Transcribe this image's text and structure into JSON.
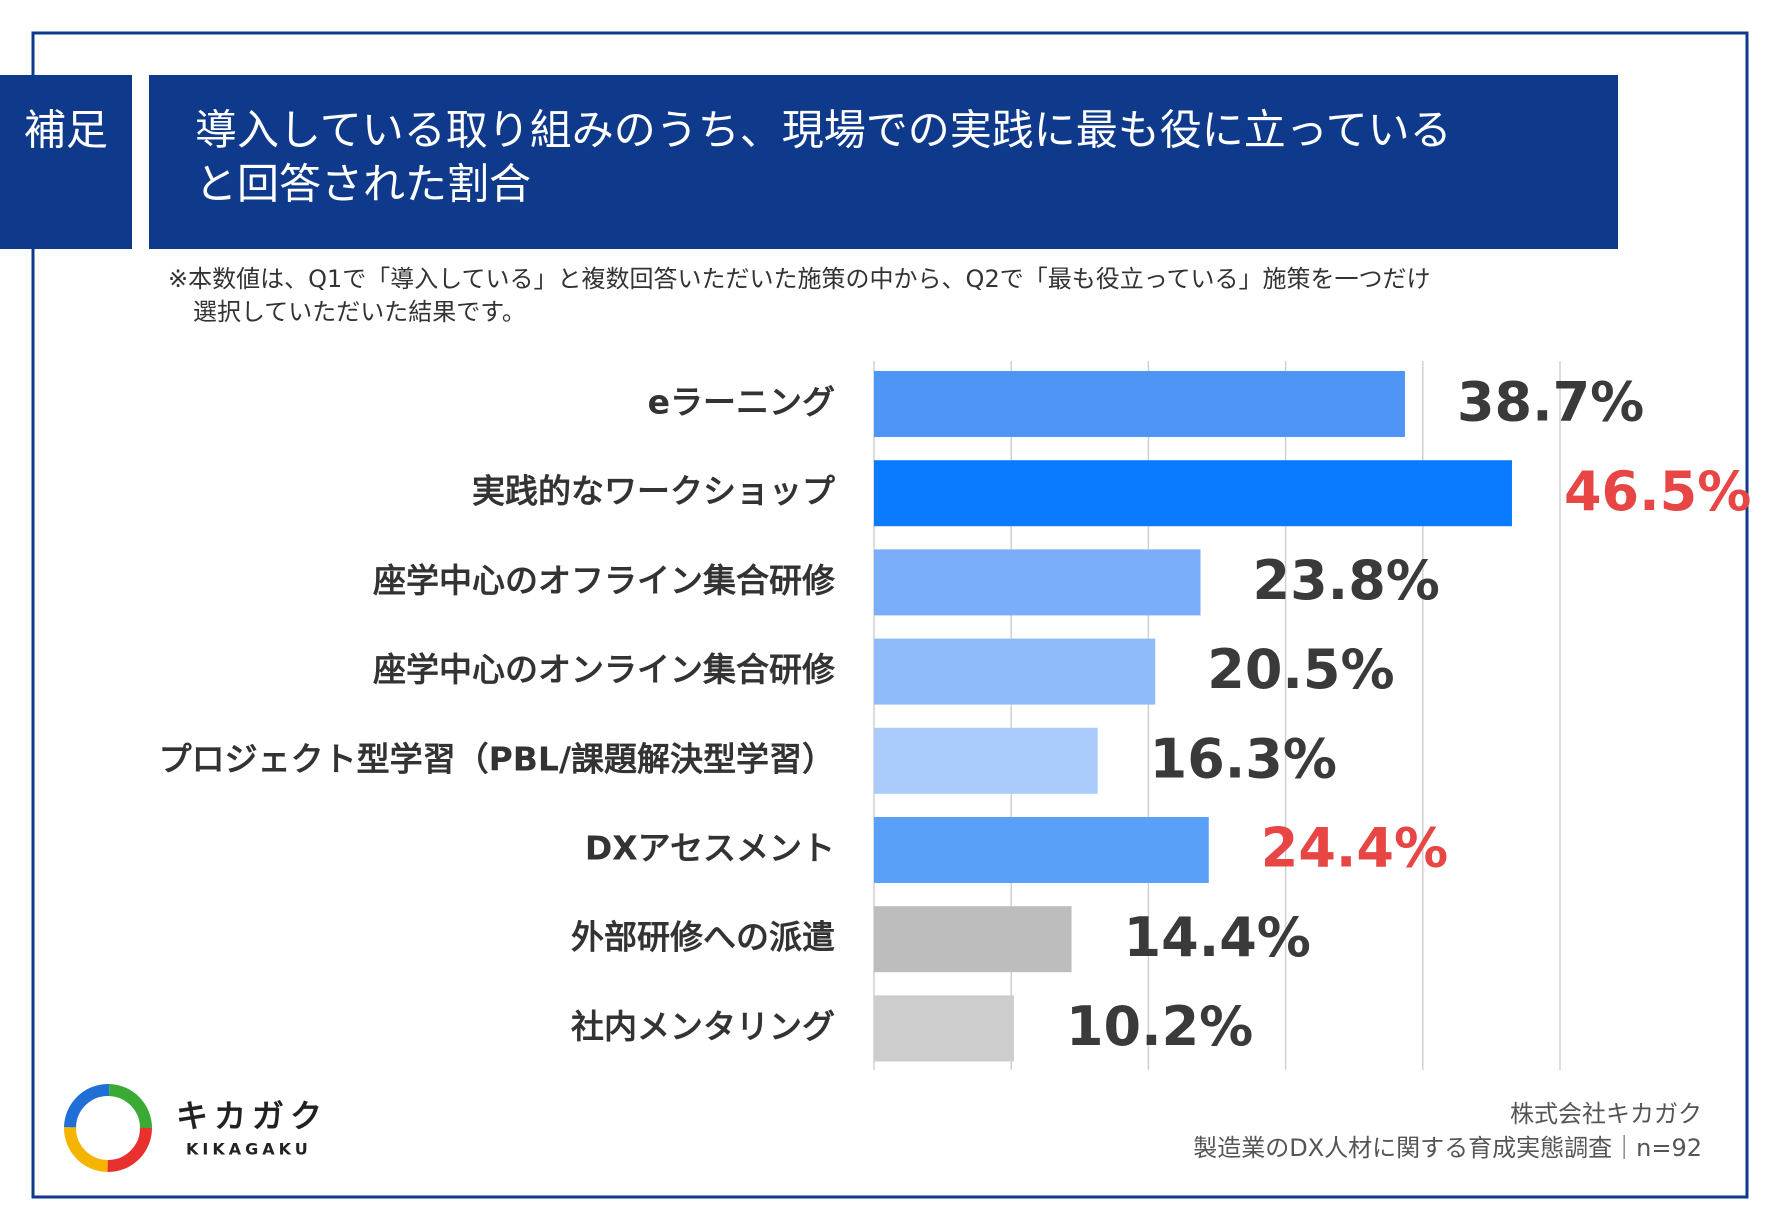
{
  "header": {
    "tag": "補足",
    "title_lines": [
      "導入している取り組みのうち、現場での実践に最も役に立っている",
      "と回答された割合"
    ]
  },
  "note_lines": [
    "※本数値は、Q1で「導入している」と複数回答いただいた施策の中から、Q2で「最も役立っている」施策を一つだけ",
    "選択していただいた結果です。"
  ],
  "chart_data": {
    "type": "bar",
    "orientation": "horizontal",
    "categories": [
      "eラーニング",
      "実践的なワークショップ",
      "座学中心のオフライン集合研修",
      "座学中心のオンライン集合研修",
      "プロジェクト型学習（PBL/課題解決型学習）",
      "DXアセスメント",
      "外部研修への派遣",
      "社内メンタリング"
    ],
    "values": [
      38.7,
      46.5,
      23.8,
      20.5,
      16.3,
      24.4,
      14.4,
      10.2
    ],
    "value_labels": [
      "38.7%",
      "46.5%",
      "23.8%",
      "20.5%",
      "16.3%",
      "24.4%",
      "14.4%",
      "10.2%"
    ],
    "colors": [
      "#4f95f5",
      "#0a7bff",
      "#7aaefa",
      "#8fbbfb",
      "#aacbfb",
      "#5a9ff8",
      "#bdbdbd",
      "#cdcdcd"
    ],
    "value_label_colors": [
      "#3a3a3a",
      "#e84545",
      "#3a3a3a",
      "#3a3a3a",
      "#3a3a3a",
      "#e84545",
      "#3a3a3a",
      "#3a3a3a"
    ],
    "xlim": [
      0,
      50
    ],
    "xticks": [
      0,
      10,
      20,
      30,
      40,
      50
    ],
    "grid": true
  },
  "logo": {
    "name": "キカガク",
    "romaji": "KIKAGAKU"
  },
  "source_lines": [
    "株式会社キカガク",
    "製造業のDX人材に関する育成実態調査｜n=92"
  ]
}
